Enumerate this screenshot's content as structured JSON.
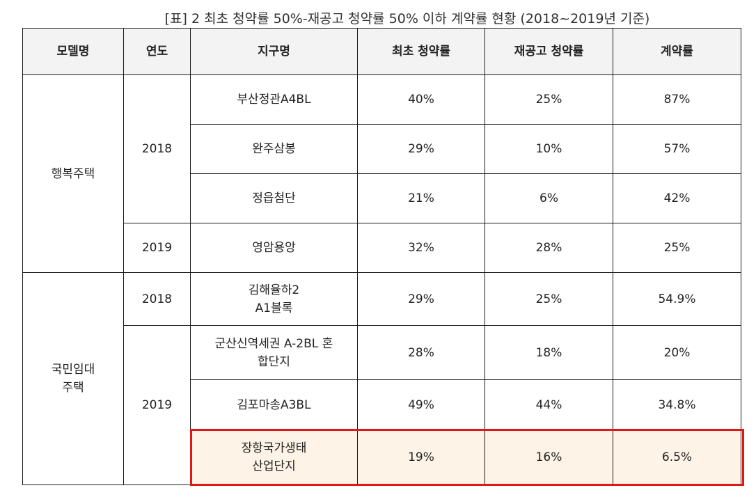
{
  "caption": "[표] 2 최초 청약률 50%-재공고 청약률 50% 이하 계약률 현황 (2018~2019년 기준)",
  "headers": {
    "model": "모델명",
    "year": "연도",
    "district": "지구명",
    "initial_rate": "최초 청약률",
    "re_rate": "재공고 청약률",
    "contract_rate": "계약률"
  },
  "groups": {
    "happy": "행복주택",
    "national_line1": "국민임대",
    "national_line2": "주택"
  },
  "years": {
    "happy_2018": "2018",
    "happy_2019": "2019",
    "national_2018": "2018",
    "national_2019": "2019"
  },
  "rows": [
    {
      "district": "부산정관A4BL",
      "initial": "40%",
      "re": "25%",
      "contract": "87%"
    },
    {
      "district": "완주삼봉",
      "initial": "29%",
      "re": "10%",
      "contract": "57%"
    },
    {
      "district": "정읍첨단",
      "initial": "21%",
      "re": "6%",
      "contract": "42%"
    },
    {
      "district": "영암용앙",
      "initial": "32%",
      "re": "28%",
      "contract": "25%"
    },
    {
      "district_line1": "김해율하2",
      "district_line2": "A1블록",
      "initial": "29%",
      "re": "25%",
      "contract": "54.9%"
    },
    {
      "district_line1": "군산신역세권 A-2BL 혼",
      "district_line2": "합단지",
      "initial": "28%",
      "re": "18%",
      "contract": "20%"
    },
    {
      "district": "김포마송A3BL",
      "initial": "49%",
      "re": "44%",
      "contract": "34.8%"
    },
    {
      "district_line1": "장항국가생태",
      "district_line2": "산업단지",
      "initial": "19%",
      "re": "16%",
      "contract": "6.5%"
    }
  ],
  "highlight_color": "#e01818",
  "highlight_fill": "#fdf3e6"
}
